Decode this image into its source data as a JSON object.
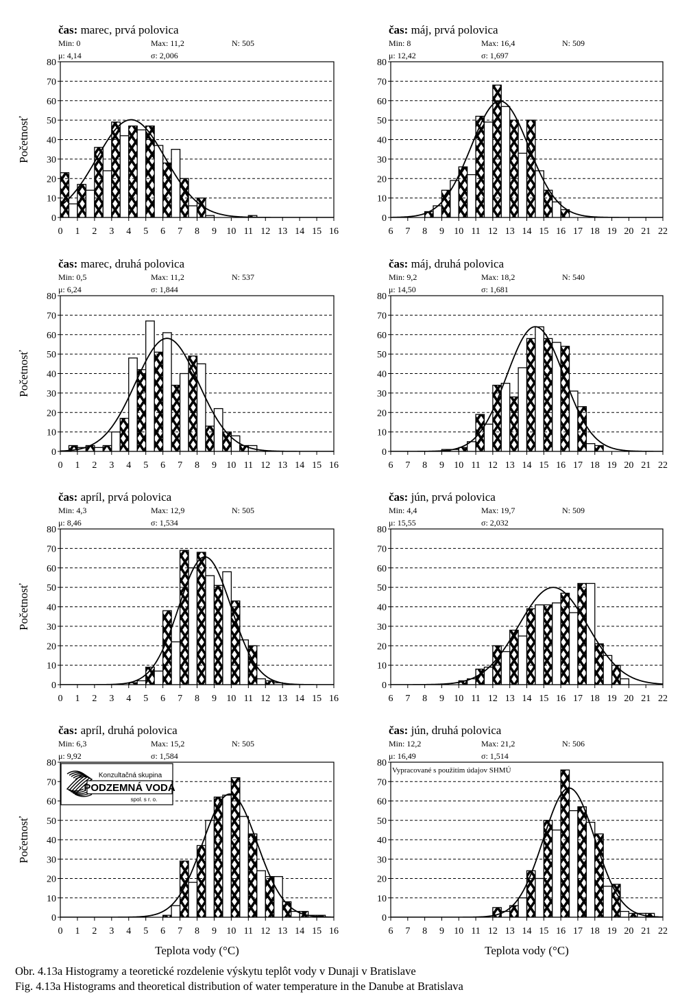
{
  "captions": {
    "sk": "Obr. 4.13a  Histogramy a teoretické rozdelenie výskytu teplôt vody v Dunaji v Bratislave",
    "en": "Fig. 4.13a  Histograms and theoretical distribution of water temperature in the Danube at Bratislava"
  },
  "labels": {
    "cas": "čas:",
    "min": "Min:",
    "max": "Max:",
    "n": "N:",
    "mu": "μ:",
    "sigma": "σ:"
  },
  "logo": {
    "line1": "Konzultačná skupina",
    "line2": "PODZEMNÁ VODA",
    "line3": "spol. s r. o."
  },
  "source_note": "Vypracované s použitím údajov SHMÚ",
  "chart_data": [
    {
      "type": "bar",
      "title": "marec, prvá polovica",
      "stats": {
        "min": "0",
        "max": "11,2",
        "n": "505",
        "mu": "4,14",
        "sigma": "2,006"
      },
      "mu": 4.14,
      "sigma": 2.006,
      "n_value": 505,
      "xlim": [
        0,
        16
      ],
      "xticks": [
        0,
        1,
        2,
        3,
        4,
        5,
        6,
        7,
        8,
        9,
        10,
        11,
        12,
        13,
        14,
        15,
        16
      ],
      "ylim": [
        0,
        80
      ],
      "yticks": [
        0,
        10,
        20,
        30,
        40,
        50,
        60,
        70,
        80
      ],
      "ylabel": "Početnosť",
      "xlabel": "",
      "bin_width": 0.5,
      "x": [
        0,
        0.5,
        1,
        1.5,
        2,
        2.5,
        3,
        3.5,
        4,
        4.5,
        5,
        5.5,
        6,
        6.5,
        7,
        7.5,
        8,
        8.5,
        9,
        9.5,
        10,
        10.5,
        11,
        11.5
      ],
      "values": [
        23,
        7,
        17,
        14,
        36,
        24,
        49,
        42,
        47,
        45,
        47,
        37,
        28,
        35,
        20,
        6,
        10,
        1,
        0,
        0,
        0,
        0,
        1,
        0
      ]
    },
    {
      "type": "bar",
      "title": "máj, prvá polovica",
      "stats": {
        "min": "8",
        "max": "16,4",
        "n": "509",
        "mu": "12,42",
        "sigma": "1,697"
      },
      "mu": 12.42,
      "sigma": 1.697,
      "n_value": 509,
      "xlim": [
        6,
        22
      ],
      "xticks": [
        6,
        7,
        8,
        9,
        10,
        11,
        12,
        13,
        14,
        15,
        16,
        17,
        18,
        19,
        20,
        21,
        22
      ],
      "ylim": [
        0,
        80
      ],
      "yticks": [
        0,
        10,
        20,
        30,
        40,
        50,
        60,
        70,
        80
      ],
      "ylabel": "",
      "xlabel": "",
      "bin_width": 0.5,
      "x": [
        8,
        8.5,
        9,
        9.5,
        10,
        10.5,
        11,
        11.5,
        12,
        12.5,
        13,
        13.5,
        14,
        14.5,
        15,
        15.5,
        16
      ],
      "values": [
        3,
        6,
        14,
        19,
        26,
        22,
        52,
        49,
        68,
        57,
        50,
        33,
        50,
        24,
        14,
        8,
        4
      ]
    },
    {
      "type": "bar",
      "title": "marec, druhá polovica",
      "stats": {
        "min": "0,5",
        "max": "11,2",
        "n": "537",
        "mu": "6,24",
        "sigma": "1,844"
      },
      "mu": 6.24,
      "sigma": 1.844,
      "n_value": 537,
      "xlim": [
        0,
        16
      ],
      "xticks": [
        0,
        1,
        2,
        3,
        4,
        5,
        6,
        7,
        8,
        9,
        10,
        11,
        12,
        13,
        14,
        15,
        16
      ],
      "ylim": [
        0,
        80
      ],
      "yticks": [
        0,
        10,
        20,
        30,
        40,
        50,
        60,
        70,
        80
      ],
      "ylabel": "Početnosť",
      "xlabel": "",
      "bin_width": 0.5,
      "x": [
        0.5,
        1,
        1.5,
        2,
        2.5,
        3,
        3.5,
        4,
        4.5,
        5,
        5.5,
        6,
        6.5,
        7,
        7.5,
        8,
        8.5,
        9,
        9.5,
        10,
        10.5,
        11
      ],
      "values": [
        3,
        2,
        3,
        2,
        3,
        10,
        17,
        48,
        42,
        67,
        51,
        61,
        34,
        40,
        49,
        45,
        13,
        22,
        10,
        8,
        3,
        3
      ]
    },
    {
      "type": "bar",
      "title": "máj, druhá polovica",
      "stats": {
        "min": "9,2",
        "max": "18,2",
        "n": "540",
        "mu": "14,50",
        "sigma": "1,681"
      },
      "mu": 14.5,
      "sigma": 1.681,
      "n_value": 540,
      "xlim": [
        6,
        22
      ],
      "xticks": [
        6,
        7,
        8,
        9,
        10,
        11,
        12,
        13,
        14,
        15,
        16,
        17,
        18,
        19,
        20,
        21,
        22
      ],
      "ylim": [
        0,
        80
      ],
      "yticks": [
        0,
        10,
        20,
        30,
        40,
        50,
        60,
        70,
        80
      ],
      "ylabel": "",
      "xlabel": "",
      "bin_width": 0.5,
      "x": [
        9,
        9.5,
        10,
        10.5,
        11,
        11.5,
        12,
        12.5,
        13,
        13.5,
        14,
        14.5,
        15,
        15.5,
        16,
        16.5,
        17,
        17.5,
        18
      ],
      "values": [
        1,
        1,
        2,
        5,
        19,
        14,
        34,
        35,
        28,
        43,
        58,
        64,
        58,
        56,
        54,
        31,
        23,
        4,
        3
      ]
    },
    {
      "type": "bar",
      "title": "apríl, prvá polovica",
      "stats": {
        "min": "4,3",
        "max": "12,9",
        "n": "505",
        "mu": "8,46",
        "sigma": "1,534"
      },
      "mu": 8.46,
      "sigma": 1.534,
      "n_value": 505,
      "xlim": [
        0,
        16
      ],
      "xticks": [
        0,
        1,
        2,
        3,
        4,
        5,
        6,
        7,
        8,
        9,
        10,
        11,
        12,
        13,
        14,
        15,
        16
      ],
      "ylim": [
        0,
        80
      ],
      "yticks": [
        0,
        10,
        20,
        30,
        40,
        50,
        60,
        70,
        80
      ],
      "ylabel": "Početnosť",
      "xlabel": "",
      "bin_width": 0.5,
      "x": [
        4,
        4.5,
        5,
        5.5,
        6,
        6.5,
        7,
        7.5,
        8,
        8.5,
        9,
        9.5,
        10,
        10.5,
        11,
        11.5,
        12,
        12.5
      ],
      "values": [
        1,
        2,
        9,
        7,
        38,
        22,
        69,
        60,
        68,
        56,
        51,
        58,
        43,
        23,
        20,
        3,
        2,
        1
      ]
    },
    {
      "type": "bar",
      "title": "jún, prvá polovica",
      "stats": {
        "min": "4,4",
        "max": "19,7",
        "n": "509",
        "mu": "15,55",
        "sigma": "2,032"
      },
      "mu": 15.55,
      "sigma": 2.032,
      "n_value": 509,
      "xlim": [
        6,
        22
      ],
      "xticks": [
        6,
        7,
        8,
        9,
        10,
        11,
        12,
        13,
        14,
        15,
        16,
        17,
        18,
        19,
        20,
        21,
        22
      ],
      "ylim": [
        0,
        80
      ],
      "yticks": [
        0,
        10,
        20,
        30,
        40,
        50,
        60,
        70,
        80
      ],
      "ylabel": "",
      "xlabel": "",
      "bin_width": 0.5,
      "x": [
        10,
        10.5,
        11,
        11.5,
        12,
        12.5,
        13,
        13.5,
        14,
        14.5,
        15,
        15.5,
        16,
        16.5,
        17,
        17.5,
        18,
        18.5,
        19,
        19.5
      ],
      "values": [
        2,
        3,
        8,
        9,
        20,
        17,
        28,
        25,
        39,
        41,
        41,
        42,
        47,
        37,
        52,
        52,
        21,
        15,
        10,
        3
      ]
    },
    {
      "type": "bar",
      "title": "apríl, druhá polovica",
      "stats": {
        "min": "6,3",
        "max": "15,2",
        "n": "505",
        "mu": "9,92",
        "sigma": "1,584"
      },
      "mu": 9.92,
      "sigma": 1.584,
      "n_value": 505,
      "xlim": [
        0,
        16
      ],
      "xticks": [
        0,
        1,
        2,
        3,
        4,
        5,
        6,
        7,
        8,
        9,
        10,
        11,
        12,
        13,
        14,
        15,
        16
      ],
      "ylim": [
        0,
        80
      ],
      "yticks": [
        0,
        10,
        20,
        30,
        40,
        50,
        60,
        70,
        80
      ],
      "ylabel": "Početnosť",
      "xlabel": "Teplota vody (°C)",
      "bin_width": 0.5,
      "x": [
        6,
        6.5,
        7,
        7.5,
        8,
        8.5,
        9,
        9.5,
        10,
        10.5,
        11,
        11.5,
        12,
        12.5,
        13,
        13.5,
        14,
        14.5,
        15
      ],
      "values": [
        1,
        6,
        29,
        18,
        37,
        50,
        62,
        63,
        72,
        52,
        43,
        24,
        21,
        21,
        8,
        3,
        3,
        1,
        1
      ]
    },
    {
      "type": "bar",
      "title": "jún, druhá polovica",
      "stats": {
        "min": "12,2",
        "max": "21,2",
        "n": "506",
        "mu": "16,49",
        "sigma": "1,514"
      },
      "mu": 16.49,
      "sigma": 1.514,
      "n_value": 506,
      "xlim": [
        6,
        22
      ],
      "xticks": [
        6,
        7,
        8,
        9,
        10,
        11,
        12,
        13,
        14,
        15,
        16,
        17,
        18,
        19,
        20,
        21,
        22
      ],
      "ylim": [
        0,
        80
      ],
      "yticks": [
        0,
        10,
        20,
        30,
        40,
        50,
        60,
        70,
        80
      ],
      "ylabel": "",
      "xlabel": "Teplota vody (°C)",
      "bin_width": 0.5,
      "x": [
        12,
        12.5,
        13,
        13.5,
        14,
        14.5,
        15,
        15.5,
        16,
        16.5,
        17,
        17.5,
        18,
        18.5,
        19,
        19.5,
        20,
        20.5,
        21
      ],
      "values": [
        5,
        3,
        6,
        10,
        24,
        20,
        50,
        45,
        76,
        55,
        57,
        49,
        43,
        16,
        17,
        3,
        2,
        2,
        2
      ]
    }
  ]
}
